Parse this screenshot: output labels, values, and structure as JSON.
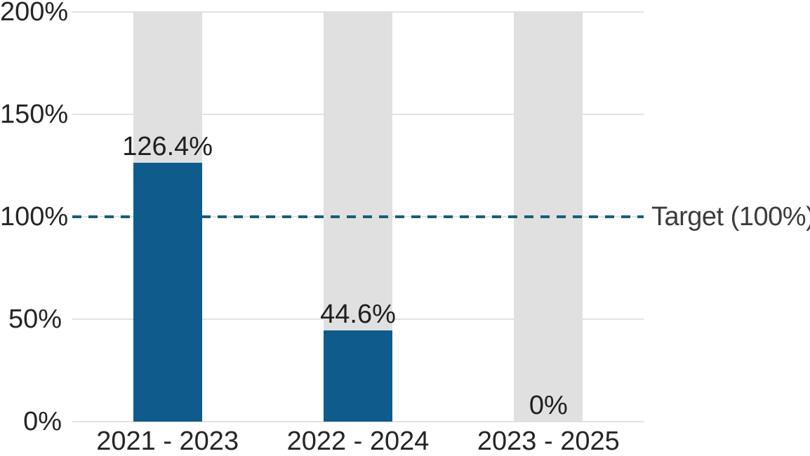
{
  "chart_data": {
    "type": "bar",
    "title": "",
    "categories": [
      "2021 - 2023",
      "2022 - 2024",
      "2023 - 2025"
    ],
    "series": [
      {
        "name": "achievement",
        "values": [
          126.4,
          44.6,
          0
        ],
        "color": "#0e5b8c"
      },
      {
        "name": "range-background",
        "values": [
          200,
          200,
          200
        ],
        "color": "#e0e0e0",
        "role": "background"
      }
    ],
    "value_labels": [
      "126.4%",
      "44.6%",
      "0%"
    ],
    "y_axis": {
      "min": 0,
      "max": 200,
      "ticks": [
        {
          "value": 200,
          "label": "200%"
        },
        {
          "value": 150,
          "label": "150%"
        },
        {
          "value": 100,
          "label": "100%"
        },
        {
          "value": 50,
          "label": "50%"
        },
        {
          "value": 0,
          "label": "0%"
        }
      ]
    },
    "target_line": {
      "value": 100,
      "label": "Target (100%)",
      "style": "dashed",
      "color": "#175d7c"
    },
    "grid": true,
    "legend": "none",
    "colors": {
      "bar": "#0e5b8c",
      "background_bar": "#e0e0e0",
      "gridline": "#e2e2e2",
      "tick_text": "#252525",
      "value_text": "#1f1f1f",
      "target_text": "#3c3c3c"
    }
  }
}
